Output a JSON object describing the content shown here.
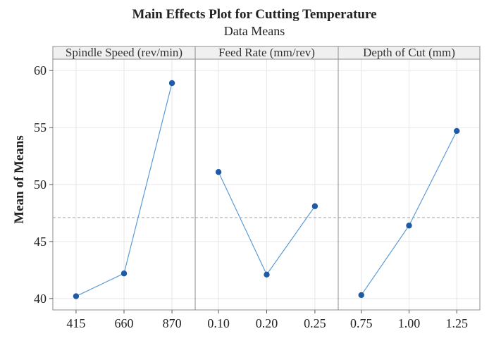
{
  "chart_data": {
    "type": "line",
    "title": "Main Effects Plot for Cutting Temperature",
    "subtitle": "Data Means",
    "ylabel": "Mean of Means",
    "ylim": [
      39,
      61
    ],
    "yticks": [
      40,
      45,
      50,
      55,
      60
    ],
    "reference_mean": 47.1,
    "colors": {
      "series": "#1f5aa6",
      "line": "#5b9bd5",
      "ref": "#a6a6a6",
      "frame": "#8c8c8c",
      "grid": "#e6e6e6",
      "header_bg": "#f0f0f0"
    },
    "panels": [
      {
        "label": "Spindle Speed (rev/min)",
        "categories": [
          "415",
          "660",
          "870"
        ],
        "values": [
          40.2,
          42.2,
          58.9
        ]
      },
      {
        "label": "Feed Rate (mm/rev)",
        "categories": [
          "0.10",
          "0.20",
          "0.25"
        ],
        "values": [
          51.1,
          42.1,
          48.1
        ]
      },
      {
        "label": "Depth of Cut (mm)",
        "categories": [
          "0.75",
          "1.00",
          "1.25"
        ],
        "values": [
          40.3,
          46.4,
          54.7
        ]
      }
    ]
  }
}
